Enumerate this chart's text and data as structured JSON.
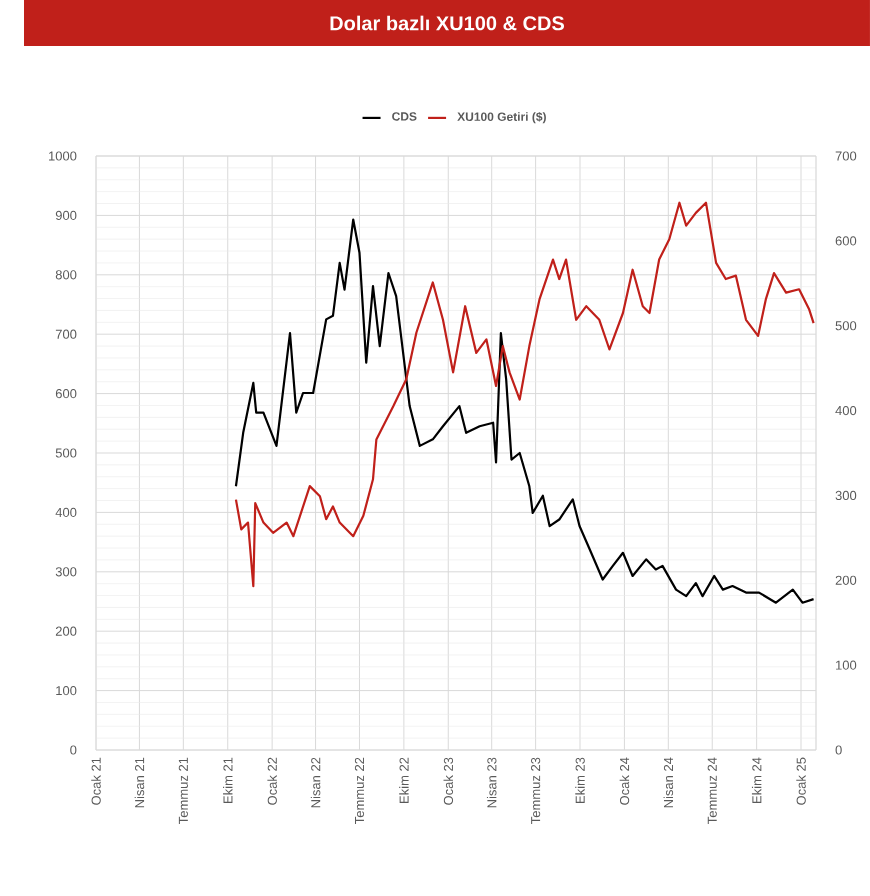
{
  "chart_data": {
    "type": "line",
    "title": "Dolar bazlı XU100 & CDS",
    "legend": "top",
    "grid": true,
    "xlim": [
      "2021-01-01",
      "2025-02-01"
    ],
    "xticks": [
      {
        "value": "2021-01-01",
        "label": "Ocak 21"
      },
      {
        "value": "2021-04-01",
        "label": "Nisan 21"
      },
      {
        "value": "2021-07-01",
        "label": "Temmuz 21"
      },
      {
        "value": "2021-10-01",
        "label": "Ekim 21"
      },
      {
        "value": "2022-01-01",
        "label": "Ocak 22"
      },
      {
        "value": "2022-04-01",
        "label": "Nisan 22"
      },
      {
        "value": "2022-07-01",
        "label": "Temmuz 22"
      },
      {
        "value": "2022-10-01",
        "label": "Ekim 22"
      },
      {
        "value": "2023-01-01",
        "label": "Ocak 23"
      },
      {
        "value": "2023-04-01",
        "label": "Nisan 23"
      },
      {
        "value": "2023-07-01",
        "label": "Temmuz 23"
      },
      {
        "value": "2023-10-01",
        "label": "Ekim 23"
      },
      {
        "value": "2024-01-01",
        "label": "Ocak 24"
      },
      {
        "value": "2024-04-01",
        "label": "Nisan 24"
      },
      {
        "value": "2024-07-01",
        "label": "Temmuz 24"
      },
      {
        "value": "2024-10-01",
        "label": "Ekim 24"
      },
      {
        "value": "2025-01-01",
        "label": "Ocak 25"
      }
    ],
    "ylim": [
      0,
      1000
    ],
    "yticks": [
      0,
      100,
      200,
      300,
      400,
      500,
      600,
      700,
      800,
      900,
      1000
    ],
    "y2lim": [
      0,
      700
    ],
    "y2ticks": [
      0,
      100,
      200,
      300,
      400,
      500,
      600,
      700
    ],
    "series": [
      {
        "name": "CDS",
        "color": "#000000",
        "x": [
          "2021-10-18",
          "2021-11-02",
          "2021-11-23",
          "2021-11-29",
          "2021-12-14",
          "2022-01-10",
          "2022-02-07",
          "2022-02-20",
          "2022-03-06",
          "2022-03-27",
          "2022-04-23",
          "2022-05-07",
          "2022-05-21",
          "2022-05-31",
          "2022-06-18",
          "2022-07-01",
          "2022-07-15",
          "2022-07-29",
          "2022-08-12",
          "2022-08-30",
          "2022-09-15",
          "2022-10-13",
          "2022-11-03",
          "2022-11-30",
          "2022-12-21",
          "2023-01-24",
          "2023-02-07",
          "2023-03-07",
          "2023-04-04",
          "2023-04-10",
          "2023-04-20",
          "2023-05-01",
          "2023-05-12",
          "2023-05-29",
          "2023-06-18",
          "2023-06-25",
          "2023-07-16",
          "2023-07-30",
          "2023-08-19",
          "2023-09-16",
          "2023-09-30",
          "2023-10-21",
          "2023-11-17",
          "2023-12-08",
          "2023-12-29",
          "2024-01-18",
          "2024-02-15",
          "2024-03-06",
          "2024-03-20",
          "2024-04-17",
          "2024-05-08",
          "2024-05-28",
          "2024-06-11",
          "2024-07-05",
          "2024-07-23",
          "2024-08-12",
          "2024-09-09",
          "2024-10-06",
          "2024-11-10",
          "2024-12-15",
          "2025-01-04",
          "2025-01-27"
        ],
        "values": [
          444,
          534,
          618,
          568,
          568,
          512,
          702,
          568,
          601,
          601,
          725,
          731,
          820,
          775,
          893,
          837,
          652,
          781,
          680,
          803,
          764,
          579,
          512,
          523,
          545,
          579,
          534,
          545,
          551,
          484,
          702,
          624,
          489,
          500,
          444,
          399,
          428,
          377,
          388,
          422,
          377,
          338,
          287,
          310,
          332,
          293,
          321,
          304,
          310,
          270,
          259,
          281,
          259,
          293,
          270,
          276,
          265,
          265,
          248,
          270,
          248,
          254
        ]
      },
      {
        "name": "XU100 Getiri ($)",
        "color": "#c0201a",
        "axis": "y2",
        "x": [
          "2021-10-18",
          "2021-10-29",
          "2021-11-12",
          "2021-11-23",
          "2021-11-27",
          "2021-12-14",
          "2022-01-03",
          "2022-01-31",
          "2022-02-14",
          "2022-03-20",
          "2022-04-10",
          "2022-04-23",
          "2022-05-07",
          "2022-05-21",
          "2022-06-18",
          "2022-07-09",
          "2022-07-29",
          "2022-08-05",
          "2022-09-09",
          "2022-10-06",
          "2022-10-27",
          "2022-11-30",
          "2022-12-21",
          "2023-01-11",
          "2023-02-05",
          "2023-02-28",
          "2023-03-21",
          "2023-04-10",
          "2023-04-24",
          "2023-05-08",
          "2023-05-29",
          "2023-06-18",
          "2023-07-09",
          "2023-08-06",
          "2023-08-19",
          "2023-09-02",
          "2023-09-23",
          "2023-10-14",
          "2023-11-10",
          "2023-12-01",
          "2023-12-29",
          "2024-01-18",
          "2024-02-08",
          "2024-02-22",
          "2024-03-13",
          "2024-04-03",
          "2024-04-24",
          "2024-05-08",
          "2024-05-28",
          "2024-06-18",
          "2024-07-09",
          "2024-07-29",
          "2024-08-19",
          "2024-09-09",
          "2024-10-04",
          "2024-10-20",
          "2024-11-06",
          "2024-12-01",
          "2024-12-28",
          "2025-01-18",
          "2025-01-27"
        ],
        "values": [
          295,
          260,
          268,
          193,
          291,
          268,
          256,
          268,
          252,
          311,
          299,
          272,
          287,
          268,
          252,
          276,
          319,
          366,
          405,
          437,
          492,
          551,
          507,
          445,
          523,
          468,
          484,
          429,
          476,
          445,
          413,
          476,
          531,
          578,
          555,
          578,
          507,
          523,
          507,
          472,
          515,
          566,
          523,
          515,
          578,
          602,
          645,
          618,
          633,
          645,
          574,
          555,
          559,
          507,
          488,
          531,
          562,
          539,
          543,
          519,
          503
        ]
      }
    ]
  }
}
